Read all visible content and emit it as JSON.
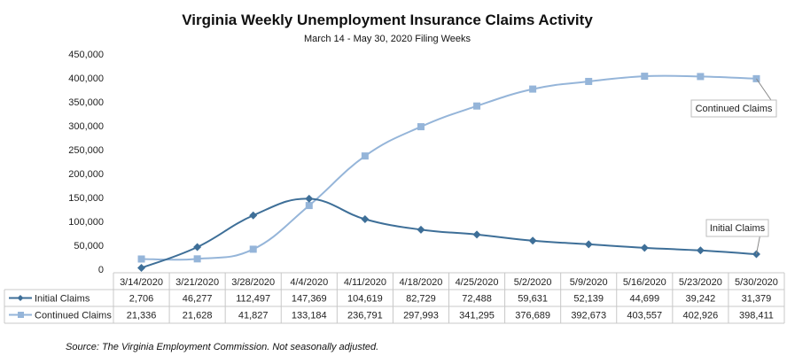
{
  "chart_data": {
    "type": "line",
    "title": "Virginia Weekly Unemployment Insurance Claims Activity",
    "subtitle": "March 14 - May 30, 2020 Filing Weeks",
    "categories": [
      "3/14/2020",
      "3/21/2020",
      "3/28/2020",
      "4/4/2020",
      "4/11/2020",
      "4/18/2020",
      "4/25/2020",
      "5/2/2020",
      "5/9/2020",
      "5/16/2020",
      "5/23/2020",
      "5/30/2020"
    ],
    "series": [
      {
        "name": "Initial Claims",
        "color": "#3E6F98",
        "marker": "diamond",
        "values": [
          2706,
          46277,
          112497,
          147369,
          104619,
          82729,
          72488,
          59631,
          52139,
          44699,
          39242,
          31379
        ],
        "labels": [
          "2,706",
          "46,277",
          "112,497",
          "147,369",
          "104,619",
          "82,729",
          "72,488",
          "59,631",
          "52,139",
          "44,699",
          "39,242",
          "31,379"
        ]
      },
      {
        "name": "Continued Claims",
        "color": "#95B5D9",
        "marker": "square",
        "values": [
          21336,
          21628,
          41827,
          133184,
          236791,
          297993,
          341295,
          376689,
          392673,
          403557,
          402926,
          398411
        ],
        "labels": [
          "21,336",
          "21,628",
          "41,827",
          "133,184",
          "236,791",
          "297,993",
          "341,295",
          "376,689",
          "392,673",
          "403,557",
          "402,926",
          "398,411"
        ]
      }
    ],
    "ylim": [
      0,
      450000
    ],
    "yticks": [
      "0",
      "50,000",
      "100,000",
      "150,000",
      "200,000",
      "250,000",
      "300,000",
      "350,000",
      "400,000",
      "450,000"
    ],
    "ytick_values": [
      0,
      50000,
      100000,
      150000,
      200000,
      250000,
      300000,
      350000,
      400000,
      450000
    ],
    "grid": false,
    "data_table": true,
    "callouts": [
      {
        "text": "Continued Claims",
        "series": 1
      },
      {
        "text": "Initial Claims",
        "series": 0
      }
    ],
    "source": "Source: The Virginia Employment Commission. Not seasonally adjusted."
  }
}
